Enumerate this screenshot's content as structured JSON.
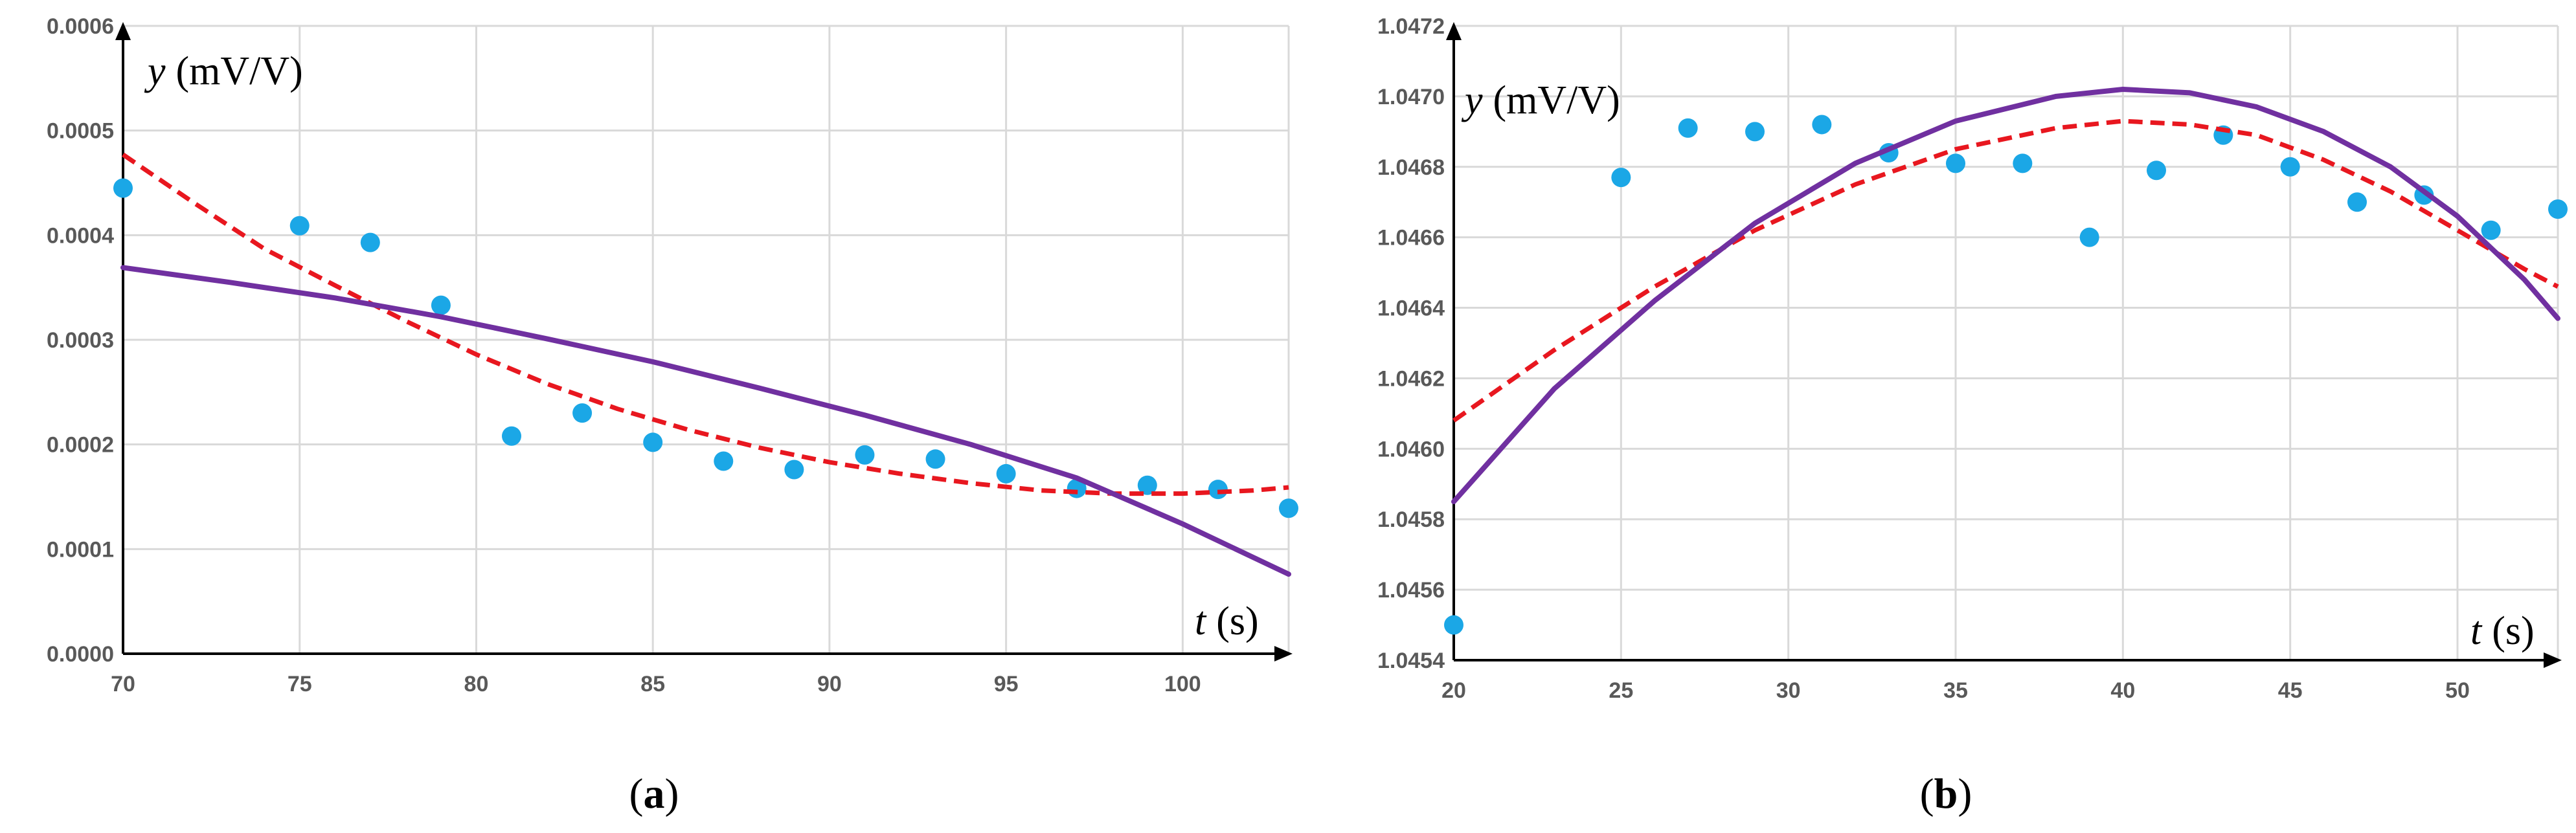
{
  "colors": {
    "points": "#1BA7E6",
    "fit_dashed": "#E8171F",
    "fit_solid": "#7030A0",
    "grid": "#D9D9D9",
    "axis": "#000000",
    "tick_text": "#595959"
  },
  "chart_data": [
    {
      "type": "scatter",
      "panel_letter": "a",
      "ylabel_var": "y",
      "ylabel_unit": "(mV/V)",
      "xlabel_var": "t",
      "xlabel_unit": "(s)",
      "xlim": [
        70,
        103
      ],
      "ylim": [
        0,
        0.0006
      ],
      "grid": true,
      "xticks": [
        "70",
        "75",
        "80",
        "85",
        "90",
        "95",
        "100"
      ],
      "yticks": [
        "0.0000",
        "0.0001",
        "0.0002",
        "0.0003",
        "0.0004",
        "0.0005",
        "0.0006"
      ],
      "series": [
        {
          "name": "measured",
          "style": "points",
          "x": [
            70,
            75,
            77,
            79,
            81,
            83,
            85,
            87,
            89,
            91,
            93,
            95,
            97,
            99,
            101,
            103
          ],
          "y": [
            0.000445,
            0.000409,
            0.000393,
            0.000333,
            0.000208,
            0.00023,
            0.000202,
            0.000184,
            0.000176,
            0.00019,
            0.000186,
            0.000172,
            0.000158,
            0.000161,
            0.000157,
            0.000139
          ]
        },
        {
          "name": "fit-dashed",
          "style": "dashed",
          "x": [
            70,
            72,
            74,
            76,
            78,
            80,
            82,
            84,
            86,
            88,
            90,
            92,
            94,
            96,
            98,
            100,
            102,
            103
          ],
          "y": [
            0.000477,
            0.000431,
            0.000387,
            0.000352,
            0.000318,
            0.000286,
            0.000258,
            0.000234,
            0.000214,
            0.000197,
            0.000183,
            0.000172,
            0.000163,
            0.000156,
            0.000153,
            0.000153,
            0.000156,
            0.000159
          ]
        },
        {
          "name": "fit-solid",
          "style": "solid",
          "x": [
            70,
            73,
            76,
            79,
            82,
            85,
            88,
            91,
            94,
            97,
            100,
            103
          ],
          "y": [
            0.000369,
            0.000355,
            0.00034,
            0.000322,
            0.000301,
            0.000279,
            0.000254,
            0.000228,
            0.0002,
            0.000168,
            0.000124,
            7.6e-05
          ]
        }
      ]
    },
    {
      "type": "scatter",
      "panel_letter": "b",
      "ylabel_var": "y",
      "ylabel_unit": "(mV/V)",
      "xlabel_var": "t",
      "xlabel_unit": "(s)",
      "xlim": [
        20,
        53
      ],
      "ylim": [
        1.0454,
        1.0472
      ],
      "grid": true,
      "xticks": [
        "20",
        "25",
        "30",
        "35",
        "40",
        "45",
        "50"
      ],
      "yticks": [
        "1.0454",
        "1.0456",
        "1.0458",
        "1.0460",
        "1.0462",
        "1.0464",
        "1.0466",
        "1.0468",
        "1.0470",
        "1.0472"
      ],
      "series": [
        {
          "name": "measured",
          "style": "points",
          "x": [
            20,
            25,
            27,
            29,
            31,
            33,
            35,
            37,
            39,
            41,
            43,
            45,
            47,
            49,
            51,
            53
          ],
          "y": [
            1.0455,
            1.04677,
            1.04691,
            1.0469,
            1.04692,
            1.04684,
            1.04681,
            1.04681,
            1.0466,
            1.04679,
            1.04689,
            1.0468,
            1.0467,
            1.04672,
            1.04662,
            1.04668
          ]
        },
        {
          "name": "fit-dashed",
          "style": "dashed",
          "x": [
            20,
            23,
            26,
            29,
            32,
            35,
            38,
            40,
            42,
            44,
            46,
            48,
            50,
            52,
            53
          ],
          "y": [
            1.04608,
            1.04628,
            1.04646,
            1.04662,
            1.04675,
            1.04685,
            1.04691,
            1.04693,
            1.04692,
            1.04689,
            1.04682,
            1.04673,
            1.04662,
            1.04651,
            1.04646
          ]
        },
        {
          "name": "fit-solid",
          "style": "solid",
          "x": [
            20,
            23,
            26,
            29,
            32,
            35,
            38,
            40,
            42,
            44,
            46,
            48,
            50,
            52,
            53
          ],
          "y": [
            1.04585,
            1.04617,
            1.04642,
            1.04664,
            1.04681,
            1.04693,
            1.047,
            1.04702,
            1.04701,
            1.04697,
            1.0469,
            1.0468,
            1.04666,
            1.04648,
            1.04637
          ]
        }
      ]
    }
  ]
}
